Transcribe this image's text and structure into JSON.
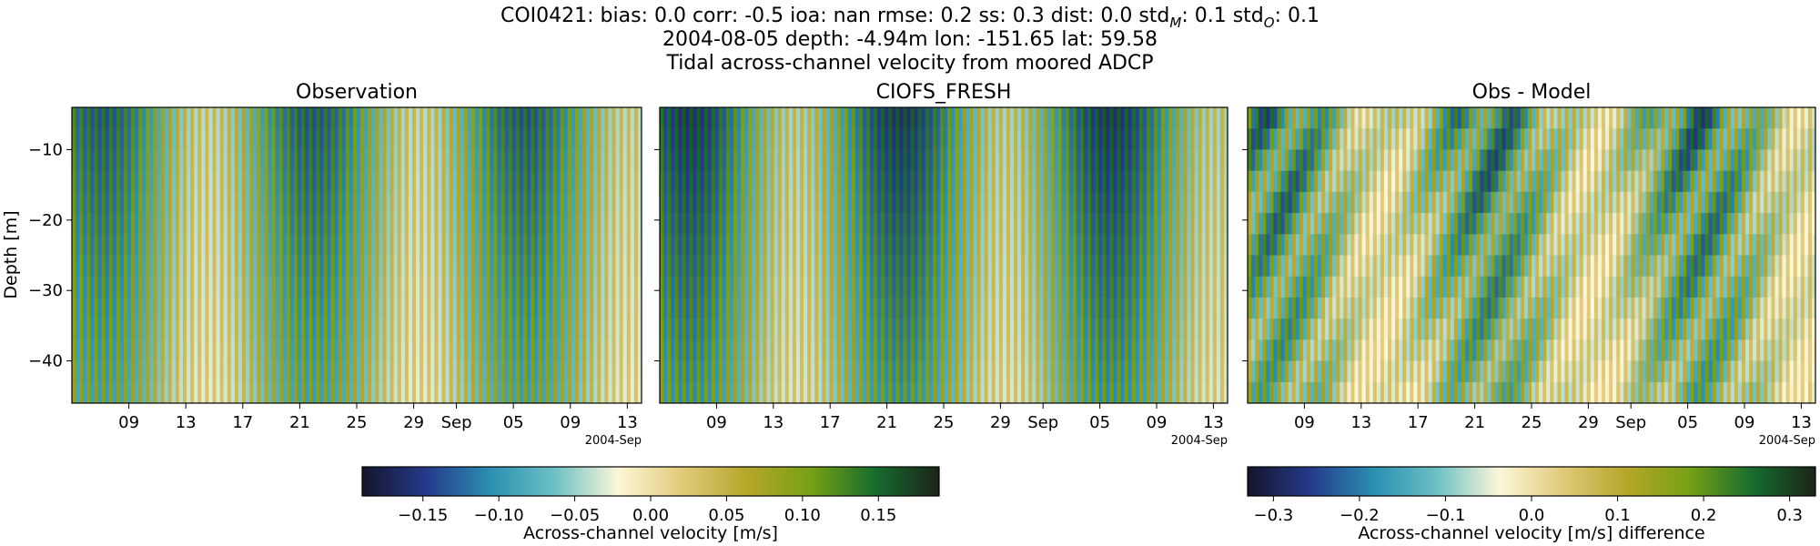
{
  "figure": {
    "title_lines": [
      "COI0421: bias: 0.0  corr: -0.5  ioa: nan  rmse: 0.2  ss: 0.3  dist: 0.0  std",
      "2004-08-05 depth: -4.94m lon: -151.65 lat: 59.58",
      "Tidal across-channel velocity from moored ADCP"
    ],
    "std_m_sub": "M",
    "std_m_value": ": 0.1  std",
    "std_o_sub": "O",
    "std_o_value": ": 0.1"
  },
  "colormap": [
    "#14142a",
    "#253a8c",
    "#2a8fb0",
    "#6cc0c4",
    "#fdf7d8",
    "#e1c978",
    "#b6a62a",
    "#77a015",
    "#176c2f",
    "#1b2418"
  ],
  "chart_data": [
    {
      "type": "heatmap",
      "title": "Observation",
      "ylabel": "Depth [m]",
      "ylim": [
        -46,
        -4
      ],
      "yticks": [
        -10,
        -20,
        -30,
        -40
      ],
      "xticks": [
        "09",
        "13",
        "17",
        "21",
        "25",
        "29",
        "Sep",
        "05",
        "09",
        "13"
      ],
      "x_offset_label": "2004-Sep",
      "x_range": [
        "2004-08-05",
        "2004-09-14"
      ],
      "value_range": [
        -0.19,
        0.19
      ],
      "tidal_amplitude_mps": 0.14,
      "semidiurnal_period_hours": 12.42
    },
    {
      "type": "heatmap",
      "title": "CIOFS_FRESH",
      "ylim": [
        -46,
        -4
      ],
      "xticks": [
        "09",
        "13",
        "17",
        "21",
        "25",
        "29",
        "Sep",
        "05",
        "09",
        "13"
      ],
      "x_offset_label": "2004-Sep",
      "x_range": [
        "2004-08-05",
        "2004-09-14"
      ],
      "value_range": [
        -0.19,
        0.19
      ],
      "tidal_amplitude_mps": 0.16,
      "semidiurnal_period_hours": 12.42
    },
    {
      "type": "heatmap",
      "title": "Obs - Model",
      "ylim": [
        -46,
        -4
      ],
      "xticks": [
        "09",
        "13",
        "17",
        "21",
        "25",
        "29",
        "Sep",
        "05",
        "09",
        "13"
      ],
      "x_offset_label": "2004-Sep",
      "x_range": [
        "2004-08-05",
        "2004-09-14"
      ],
      "value_range": [
        -0.33,
        0.33
      ],
      "tidal_amplitude_mps": 0.25,
      "semidiurnal_period_hours": 12.42
    }
  ],
  "colorbars": [
    {
      "label": "Across-channel velocity [m/s]",
      "range": [
        -0.19,
        0.19
      ],
      "ticks": [
        "−0.15",
        "−0.10",
        "−0.05",
        "0.00",
        "0.05",
        "0.10",
        "0.15"
      ],
      "tick_values": [
        -0.15,
        -0.1,
        -0.05,
        0.0,
        0.05,
        0.1,
        0.15
      ]
    },
    {
      "label": "Across-channel velocity [m/s] difference",
      "range": [
        -0.33,
        0.33
      ],
      "ticks": [
        "−0.3",
        "−0.2",
        "−0.1",
        "0.0",
        "0.1",
        "0.2",
        "0.3"
      ],
      "tick_values": [
        -0.3,
        -0.2,
        -0.1,
        0.0,
        0.1,
        0.2,
        0.3
      ]
    }
  ]
}
